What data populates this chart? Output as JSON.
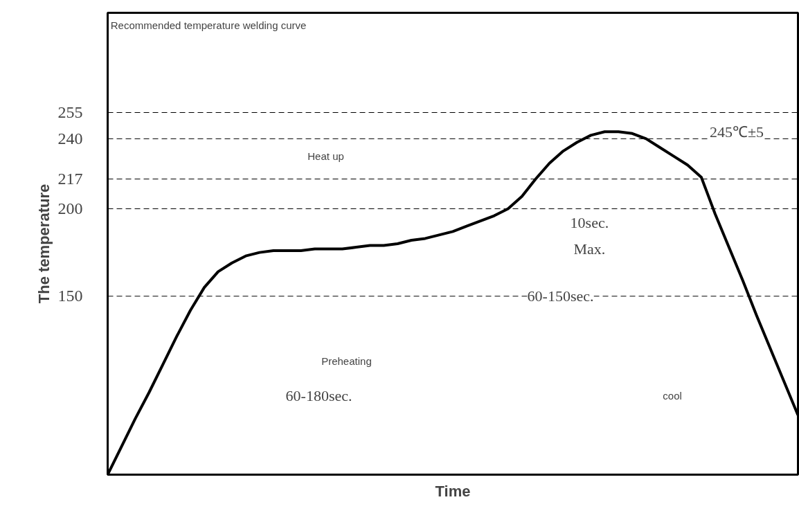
{
  "chart_data": {
    "type": "line",
    "xlabel": "Time",
    "ylabel": "The temperature",
    "categories": [
      null,
      null,
      null,
      null,
      null,
      null,
      null,
      null,
      null,
      null,
      null,
      null,
      null,
      null,
      null,
      null,
      null,
      null,
      null,
      null,
      null,
      null,
      null,
      null,
      null,
      null,
      null,
      null,
      null,
      null,
      null,
      null,
      null,
      null,
      null,
      null,
      null,
      null,
      null,
      null,
      null,
      null,
      null,
      null,
      null,
      null,
      null,
      null,
      null,
      null,
      null
    ],
    "series": [
      {
        "color": "#000000",
        "values": [
          48,
          64,
          80,
          95,
          111,
          127,
          142,
          155,
          164,
          169,
          173,
          175,
          176,
          176,
          176,
          177,
          177,
          177,
          178,
          179,
          179,
          180,
          182,
          183,
          185,
          187,
          190,
          193,
          196,
          200,
          207,
          217,
          226,
          233,
          238,
          242,
          244,
          244,
          243,
          240,
          235,
          230,
          225,
          218,
          197,
          178,
          159,
          139,
          120,
          101,
          82
        ]
      }
    ],
    "ylim": [
      48,
      312
    ],
    "yticks": [
      150,
      200,
      217,
      240,
      255
    ],
    "grid": false,
    "tick_labels": "y",
    "marker": "none",
    "line_style": "solid",
    "ref_lines": [
      {
        "axis": "y",
        "value": 255,
        "line_style": "dashed"
      },
      {
        "axis": "y",
        "value": 240,
        "line_style": "dashed"
      },
      {
        "axis": "y",
        "value": 217,
        "line_style": "dashed"
      },
      {
        "axis": "y",
        "value": 200,
        "line_style": "dashed"
      },
      {
        "axis": "y",
        "value": 150,
        "line_style": "dashed"
      }
    ],
    "annotations": [
      "Recommended temperature welding curve",
      "Heat up",
      "245℃±5",
      "10sec.",
      "Max.",
      "60-150sec.",
      "Preheating",
      "60-180sec.",
      "cool"
    ]
  }
}
